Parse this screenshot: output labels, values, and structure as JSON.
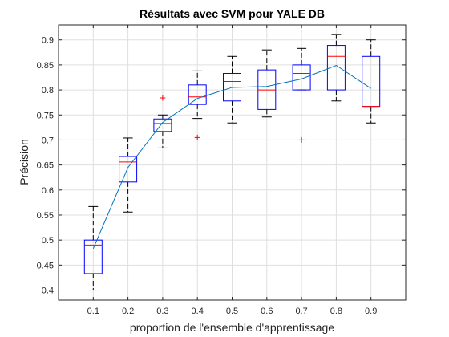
{
  "chart_data": {
    "type": "box",
    "title": "Résultats avec SVM pour YALE DB",
    "xlabel": "proportion de l'ensemble d'apprentissage",
    "ylabel": "Précision",
    "categories": [
      "0.1",
      "0.2",
      "0.3",
      "0.4",
      "0.5",
      "0.6",
      "0.7",
      "0.8",
      "0.9"
    ],
    "ylim": [
      0.38,
      0.93
    ],
    "yticks": [
      0.4,
      0.45,
      0.5,
      0.55,
      0.6,
      0.65,
      0.7,
      0.75,
      0.8,
      0.85,
      0.9
    ],
    "ytick_labels": [
      "0.4",
      "0.45",
      "0.5",
      "0.55",
      "0.6",
      "0.65",
      "0.7",
      "0.75",
      "0.8",
      "0.85",
      "0.9"
    ],
    "grid": true,
    "boxes": [
      {
        "min": 0.4,
        "q1": 0.433,
        "median": 0.49,
        "q3": 0.5,
        "max": 0.567,
        "outliers": []
      },
      {
        "min": 0.556,
        "q1": 0.616,
        "median": 0.656,
        "q3": 0.667,
        "max": 0.704,
        "outliers": []
      },
      {
        "min": 0.684,
        "q1": 0.717,
        "median": 0.733,
        "q3": 0.742,
        "max": 0.75,
        "outliers": [
          0.784
        ]
      },
      {
        "min": 0.743,
        "q1": 0.771,
        "median": 0.786,
        "q3": 0.81,
        "max": 0.838,
        "outliers": [
          0.705
        ]
      },
      {
        "min": 0.734,
        "q1": 0.778,
        "median": 0.817,
        "q3": 0.833,
        "max": 0.867,
        "outliers": []
      },
      {
        "min": 0.746,
        "q1": 0.761,
        "median": 0.8,
        "q3": 0.84,
        "max": 0.88,
        "outliers": []
      },
      {
        "min": 0.8,
        "q1": 0.8,
        "median": 0.833,
        "q3": 0.85,
        "max": 0.883,
        "outliers": [
          0.7
        ]
      },
      {
        "min": 0.778,
        "q1": 0.8,
        "median": 0.867,
        "q3": 0.889,
        "max": 0.911,
        "outliers": []
      },
      {
        "min": 0.734,
        "q1": 0.767,
        "median": 0.767,
        "q3": 0.867,
        "max": 0.9,
        "outliers": []
      }
    ],
    "mean_line": [
      0.483,
      0.645,
      0.735,
      0.783,
      0.805,
      0.807,
      0.822,
      0.849,
      0.803
    ],
    "colors": {
      "box": "#0000ff",
      "median": "#ff0000",
      "whisker": "#000000",
      "outlier": "#ff0000",
      "mean_line": "#0072bd",
      "grid": "#dfdfdf",
      "axis": "#262626"
    }
  }
}
